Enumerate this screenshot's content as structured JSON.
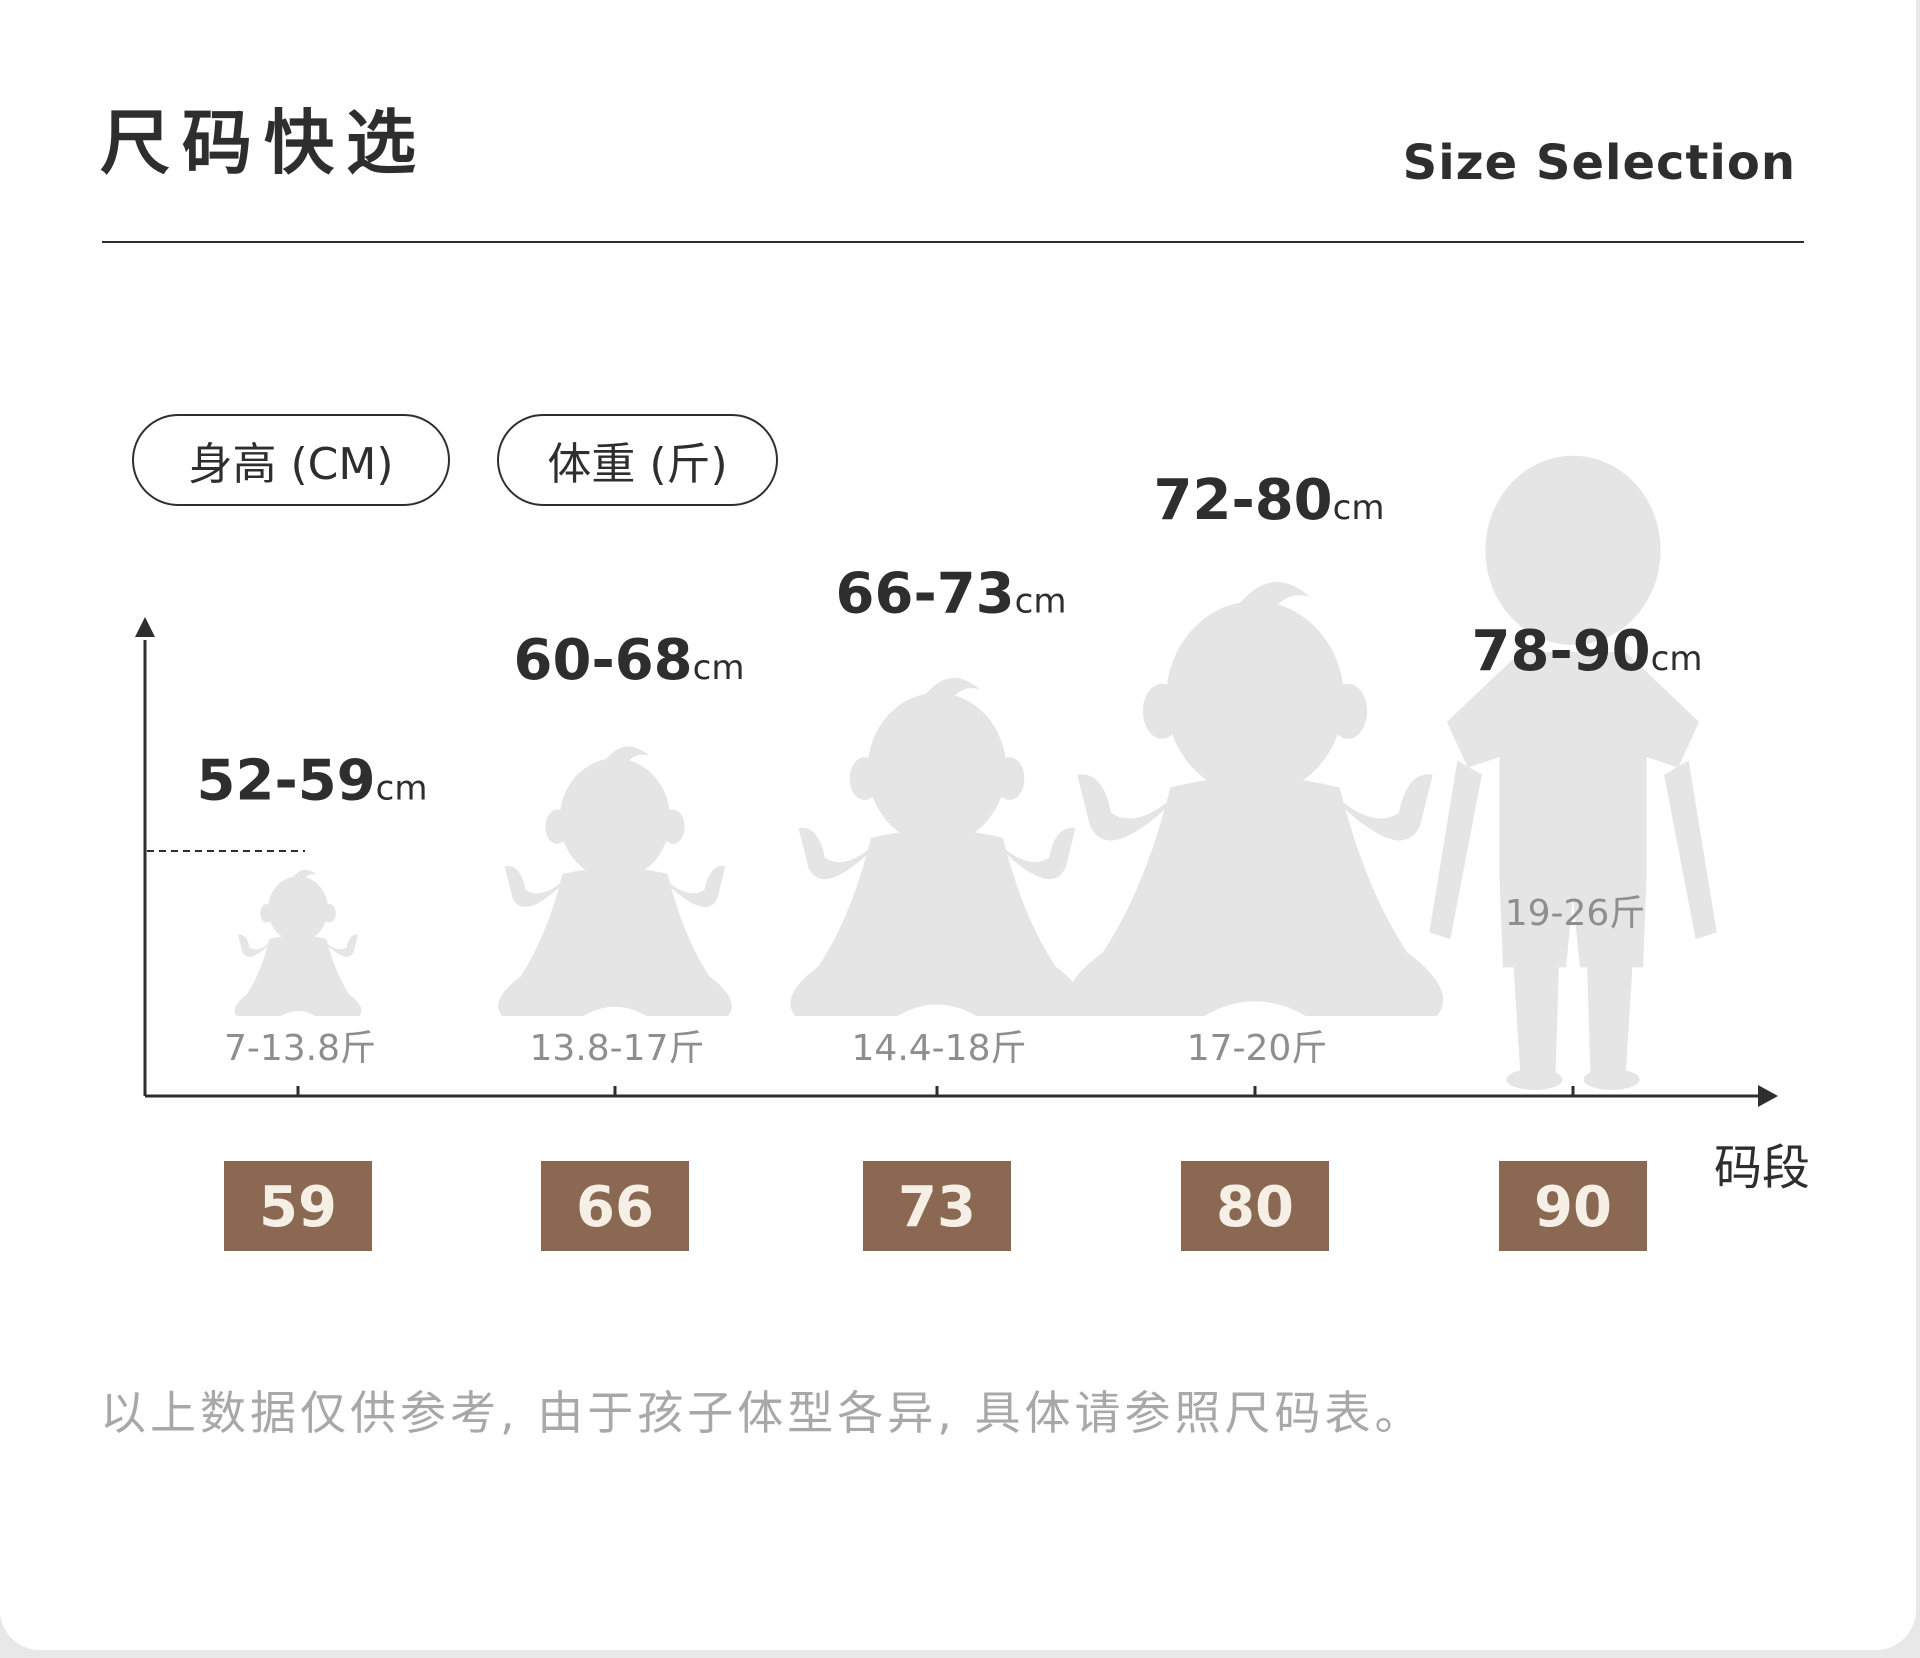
{
  "header": {
    "title_cn": "尺码快选",
    "title_en": "Size Selection"
  },
  "filters": {
    "height_label": "身高 (CM)",
    "weight_label": "体重 (斤)"
  },
  "chart_data": {
    "type": "bar",
    "xlabel": "码段",
    "categories": [
      "59",
      "66",
      "73",
      "80",
      "90"
    ],
    "height_ranges": [
      "52-59",
      "60-68",
      "66-73",
      "72-80",
      "78-90"
    ],
    "height_unit": "cm",
    "weight_ranges": [
      "7-13.8斤",
      "13.8-17斤",
      "14.4-18斤",
      "17-20斤",
      "19-26斤"
    ],
    "values": [
      59,
      68,
      73,
      80,
      90
    ],
    "figures": [
      "baby",
      "baby",
      "baby",
      "baby",
      "toddler"
    ],
    "colors": {
      "size_box": "#8a6852",
      "size_text": "#f6efe6",
      "silhouette": "#e5e5e5",
      "axis": "#2e2e2e"
    }
  },
  "footer": {
    "note": "以上数据仅供参考, 由于孩子体型各异, 具体请参照尺码表。"
  }
}
